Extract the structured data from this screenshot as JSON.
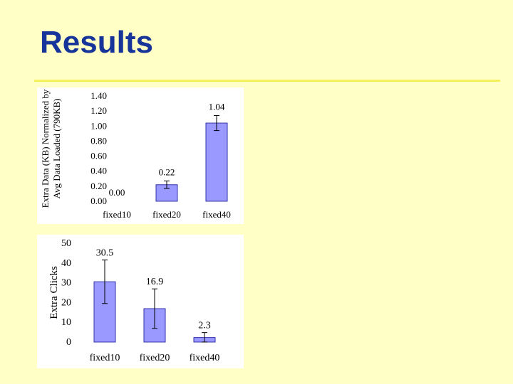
{
  "slide": {
    "title": "Results"
  },
  "chart_data": [
    {
      "type": "bar",
      "categories": [
        "fixed10",
        "fixed20",
        "fixed40"
      ],
      "values": [
        0.0,
        0.22,
        1.04
      ],
      "data_labels": [
        "0.00",
        "0.22",
        "1.04"
      ],
      "error": [
        0.0,
        0.05,
        0.1
      ],
      "ylabel_line1": "Extra Data (KB) Normalized by",
      "ylabel_line2": "Avg Data Loaded (790KB)",
      "ylim": [
        0,
        1.4
      ],
      "yticks": [
        "0.00",
        "0.20",
        "0.40",
        "0.60",
        "0.80",
        "1.00",
        "1.20",
        "1.40"
      ],
      "bar_color": "#9999ff",
      "grid": false
    },
    {
      "type": "bar",
      "categories": [
        "fixed10",
        "fixed20",
        "fixed40"
      ],
      "values": [
        30.5,
        16.9,
        2.3
      ],
      "data_labels": [
        "30.5",
        "16.9",
        "2.3"
      ],
      "error": [
        11,
        10,
        2.5
      ],
      "ylabel": "Extra Clicks",
      "ylim": [
        0,
        50
      ],
      "yticks": [
        "0",
        "10",
        "20",
        "30",
        "40",
        "50"
      ],
      "bar_color": "#9999ff",
      "grid": false
    }
  ]
}
